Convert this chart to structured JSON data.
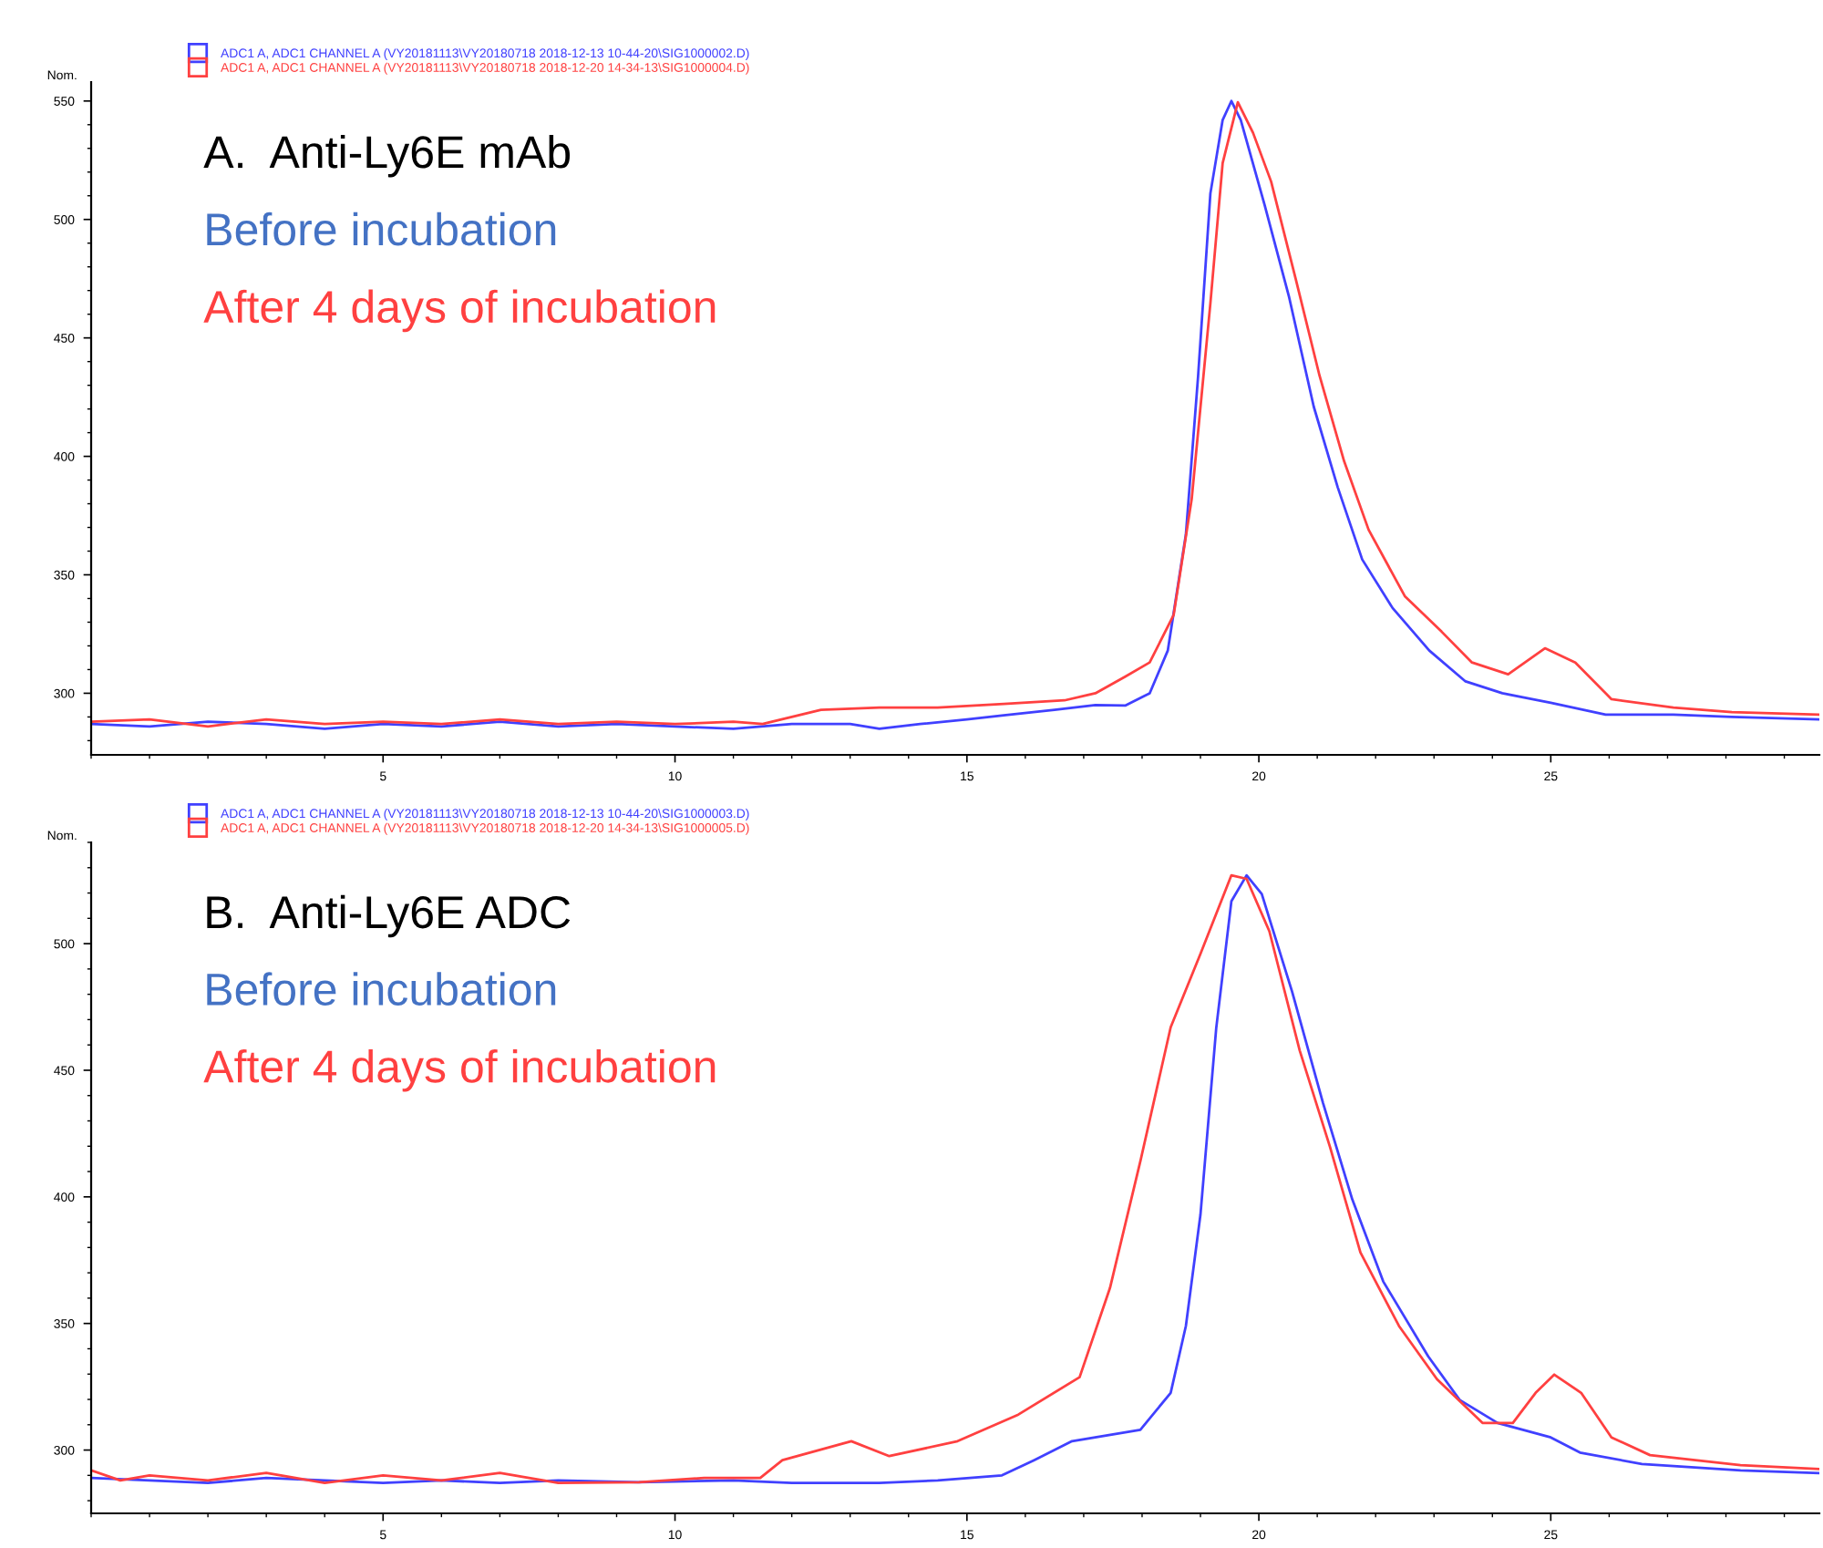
{
  "chart_data": [
    {
      "type": "line",
      "title": "A.  Anti-Ly6E mAb",
      "ylabel": "Nom.",
      "annotations": [
        "Before incubation",
        "After 4 days of incubation"
      ],
      "xlim": [
        0,
        29.6
      ],
      "xticks": [
        5,
        10,
        15,
        20,
        25
      ],
      "ylim": [
        274,
        558
      ],
      "yticks": [
        300,
        350,
        400,
        450,
        500,
        550
      ],
      "grid": false,
      "legend": "top left",
      "marker": "none",
      "line_style": "solid",
      "series": [
        {
          "name": "ADC1 A, ADC1 CHANNEL A (VY20181113\\VY20180718 2018-12-13 10-44-20\\SIG1000002.D)",
          "color": "#4040ff",
          "x": [
            0,
            1,
            2,
            3,
            4,
            5,
            6,
            7,
            8,
            9,
            10,
            11,
            12,
            13,
            13.5,
            14.2,
            15,
            15.63,
            16.5,
            17.2,
            17.71,
            18.13,
            18.44,
            18.75,
            18.96,
            19.17,
            19.38,
            19.53,
            19.69,
            20.1,
            20.52,
            20.94,
            21.35,
            21.77,
            22.29,
            22.92,
            23.54,
            24.17,
            25.0,
            25.94,
            27.1,
            28.1,
            29.6
          ],
          "values": [
            287,
            286,
            288,
            287,
            285,
            287,
            286,
            288,
            286,
            287,
            286,
            285,
            287,
            287,
            285,
            287,
            289,
            290.7,
            293,
            295,
            294.8,
            300,
            318,
            367,
            434,
            511,
            542,
            550,
            542,
            506,
            467,
            421,
            387,
            356.5,
            336,
            318,
            305,
            300,
            296,
            291,
            291,
            290,
            289
          ]
        },
        {
          "name": "ADC1 A, ADC1 CHANNEL A (VY20181113\\VY20180718 2018-12-20 14-34-13\\SIG1000004.D)",
          "color": "#ff4040",
          "x": [
            0,
            1,
            2,
            3,
            4,
            5,
            6,
            7,
            8,
            9,
            10,
            11,
            11.5,
            12.5,
            13.5,
            14.5,
            15.63,
            16.67,
            17.2,
            17.71,
            18.13,
            18.54,
            18.85,
            19.17,
            19.38,
            19.64,
            19.9,
            20.21,
            20.63,
            21.04,
            21.46,
            21.88,
            22.5,
            23.13,
            23.65,
            24.27,
            24.9,
            25.42,
            26.04,
            27.1,
            28.1,
            29.6
          ],
          "values": [
            288,
            289,
            286,
            289,
            287,
            288,
            287,
            289,
            287,
            288,
            287,
            288,
            287,
            293,
            294,
            294,
            295.5,
            297,
            300,
            307,
            313,
            333,
            382,
            464.6,
            523.8,
            549.5,
            536.6,
            516,
            475,
            434,
            398,
            369,
            341,
            326,
            313,
            308,
            319,
            313,
            297.5,
            294,
            292,
            291
          ]
        }
      ]
    },
    {
      "type": "line",
      "title": "B.  Anti-Ly6E ADC",
      "ylabel": "Nom.",
      "annotations": [
        "Before incubation",
        "After 4 days of incubation"
      ],
      "xlim": [
        0,
        29.6
      ],
      "xticks": [
        5,
        10,
        15,
        20,
        25
      ],
      "ylim": [
        275,
        540
      ],
      "yticks": [
        300,
        350,
        400,
        450,
        500
      ],
      "grid": false,
      "legend": "top left",
      "marker": "none",
      "line_style": "solid",
      "series": [
        {
          "name": "ADC1 A, ADC1 CHANNEL A (VY20181113\\VY20180718 2018-12-13 10-44-20\\SIG1000003.D)",
          "color": "#4040ff",
          "x": [
            0,
            1,
            2,
            3,
            4,
            5,
            6,
            7,
            8,
            9.38,
            11,
            12,
            13.5,
            14.5,
            15.6,
            16.15,
            16.8,
            17.97,
            18.49,
            18.75,
            19.0,
            19.27,
            19.53,
            19.79,
            20.05,
            20.57,
            21.1,
            21.6,
            22.13,
            22.9,
            23.44,
            24.09,
            25.0,
            25.5,
            26.56,
            28.25,
            29.6
          ],
          "values": [
            289,
            288,
            287,
            289,
            288,
            287,
            288,
            287,
            288,
            287.3,
            288,
            287,
            287,
            288,
            290,
            296,
            303.5,
            308,
            322.6,
            349,
            393,
            466.7,
            516.8,
            527,
            519.6,
            481,
            437,
            399,
            366.6,
            337,
            319.8,
            310.7,
            305,
            299,
            294.5,
            292,
            290.9
          ]
        },
        {
          "name": "ADC1 A, ADC1 CHANNEL A (VY20181113\\VY20180718 2018-12-20 14-34-13\\SIG1000005.D)",
          "color": "#ff4040",
          "x": [
            0,
            0.5,
            1,
            2,
            3,
            4,
            5,
            6,
            7,
            8,
            9.38,
            10.5,
            11.46,
            11.84,
            13.02,
            13.67,
            14.84,
            15.88,
            16.93,
            17.45,
            17.97,
            18.49,
            19.0,
            19.53,
            19.79,
            20.18,
            20.7,
            21.22,
            21.74,
            22.4,
            23.05,
            23.83,
            24.35,
            24.74,
            25.06,
            25.52,
            26.04,
            26.7,
            28.25,
            29.6
          ],
          "values": [
            292,
            288,
            290,
            288,
            291,
            287,
            290,
            288,
            291,
            287,
            287.3,
            289,
            289,
            296,
            303.5,
            297.6,
            303.5,
            314,
            328.8,
            364,
            414,
            467,
            496,
            527,
            525.6,
            504.9,
            457.8,
            419.6,
            378,
            349,
            328,
            310.7,
            310.7,
            322.6,
            329.8,
            322.6,
            305,
            298,
            294,
            292.5
          ]
        }
      ]
    }
  ]
}
